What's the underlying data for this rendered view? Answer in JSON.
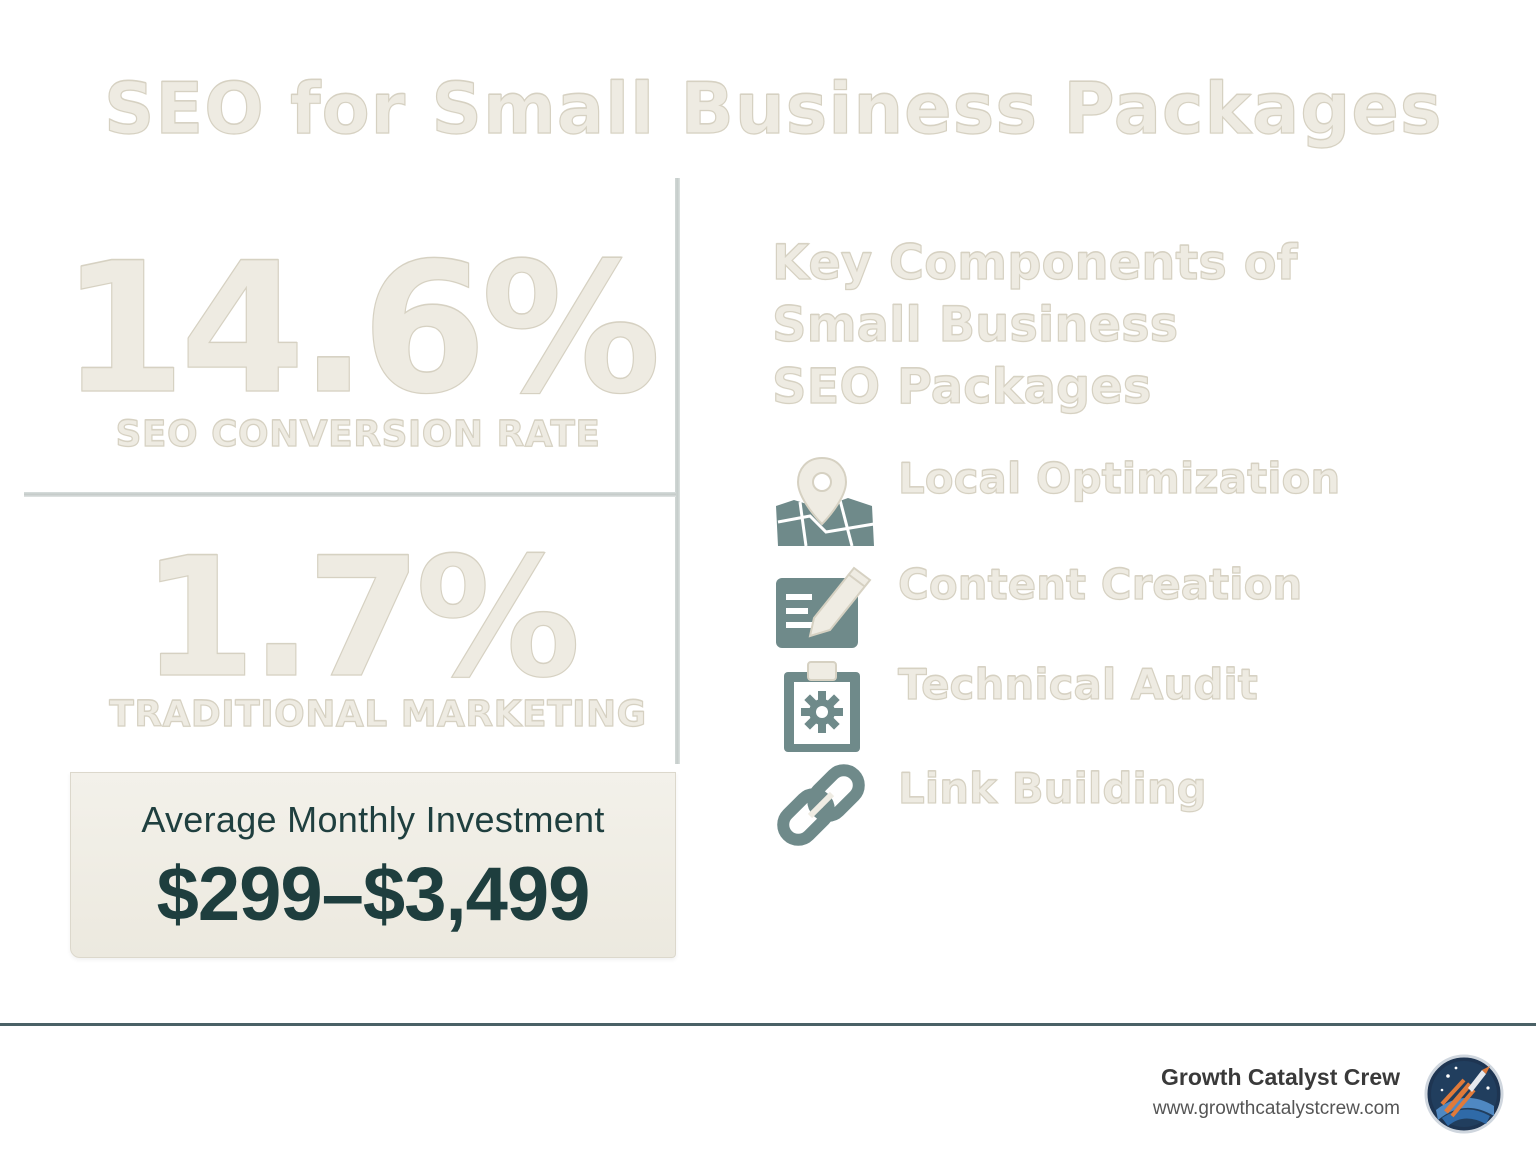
{
  "title": "SEO for Small Business Packages",
  "stats": [
    {
      "value": "14.6%",
      "label": "SEO CONVERSION RATE"
    },
    {
      "value": "1.7%",
      "label": "TRADITIONAL MARKETING"
    }
  ],
  "investment": {
    "label": "Average Monthly Investment",
    "value": "$299–$3,499"
  },
  "components": {
    "title_lines": [
      "Key Components of",
      "Small Business",
      "SEO Packages"
    ],
    "items": [
      {
        "label": "Local Optimization",
        "icon": "map-pin-icon"
      },
      {
        "label": "Content Creation",
        "icon": "pencil-note-icon"
      },
      {
        "label": "Technical Audit",
        "icon": "clipboard-gear-icon"
      },
      {
        "label": "Link Building",
        "icon": "chain-link-icon"
      }
    ]
  },
  "footer": {
    "brand": "Growth Catalyst Crew",
    "url": "www.growthcatalystcrew.com",
    "logo_icon": "rocket-logo-icon"
  },
  "colors": {
    "cream_text": "#eeebe2",
    "icon_slate": "#6f8a8a",
    "dark_teal": "#1e3e3e",
    "footer_rule": "#4a6166"
  }
}
